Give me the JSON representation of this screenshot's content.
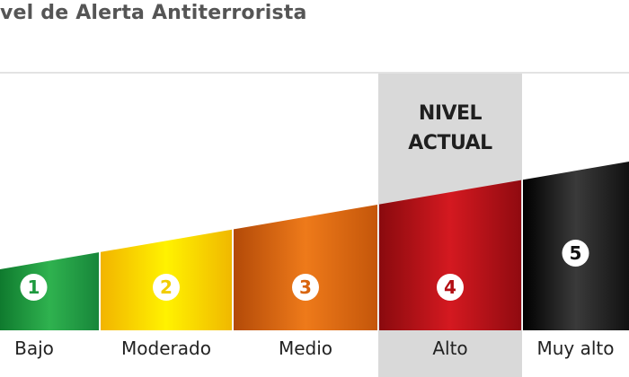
{
  "title": "vel de Alerta Antiterrorista",
  "current_level": {
    "line1": "NIVEL",
    "line2": "ACTUAL",
    "value": 4
  },
  "levels": [
    {
      "number": "1",
      "label": "Bajo",
      "color": "#1e9a3f"
    },
    {
      "number": "2",
      "label": "Moderado",
      "color": "#f2cd00"
    },
    {
      "number": "3",
      "label": "Medio",
      "color": "#d9650e"
    },
    {
      "number": "4",
      "label": "Alto",
      "color": "#b30f14"
    },
    {
      "number": "5",
      "label": "Muy alto",
      "color": "#111111"
    }
  ]
}
